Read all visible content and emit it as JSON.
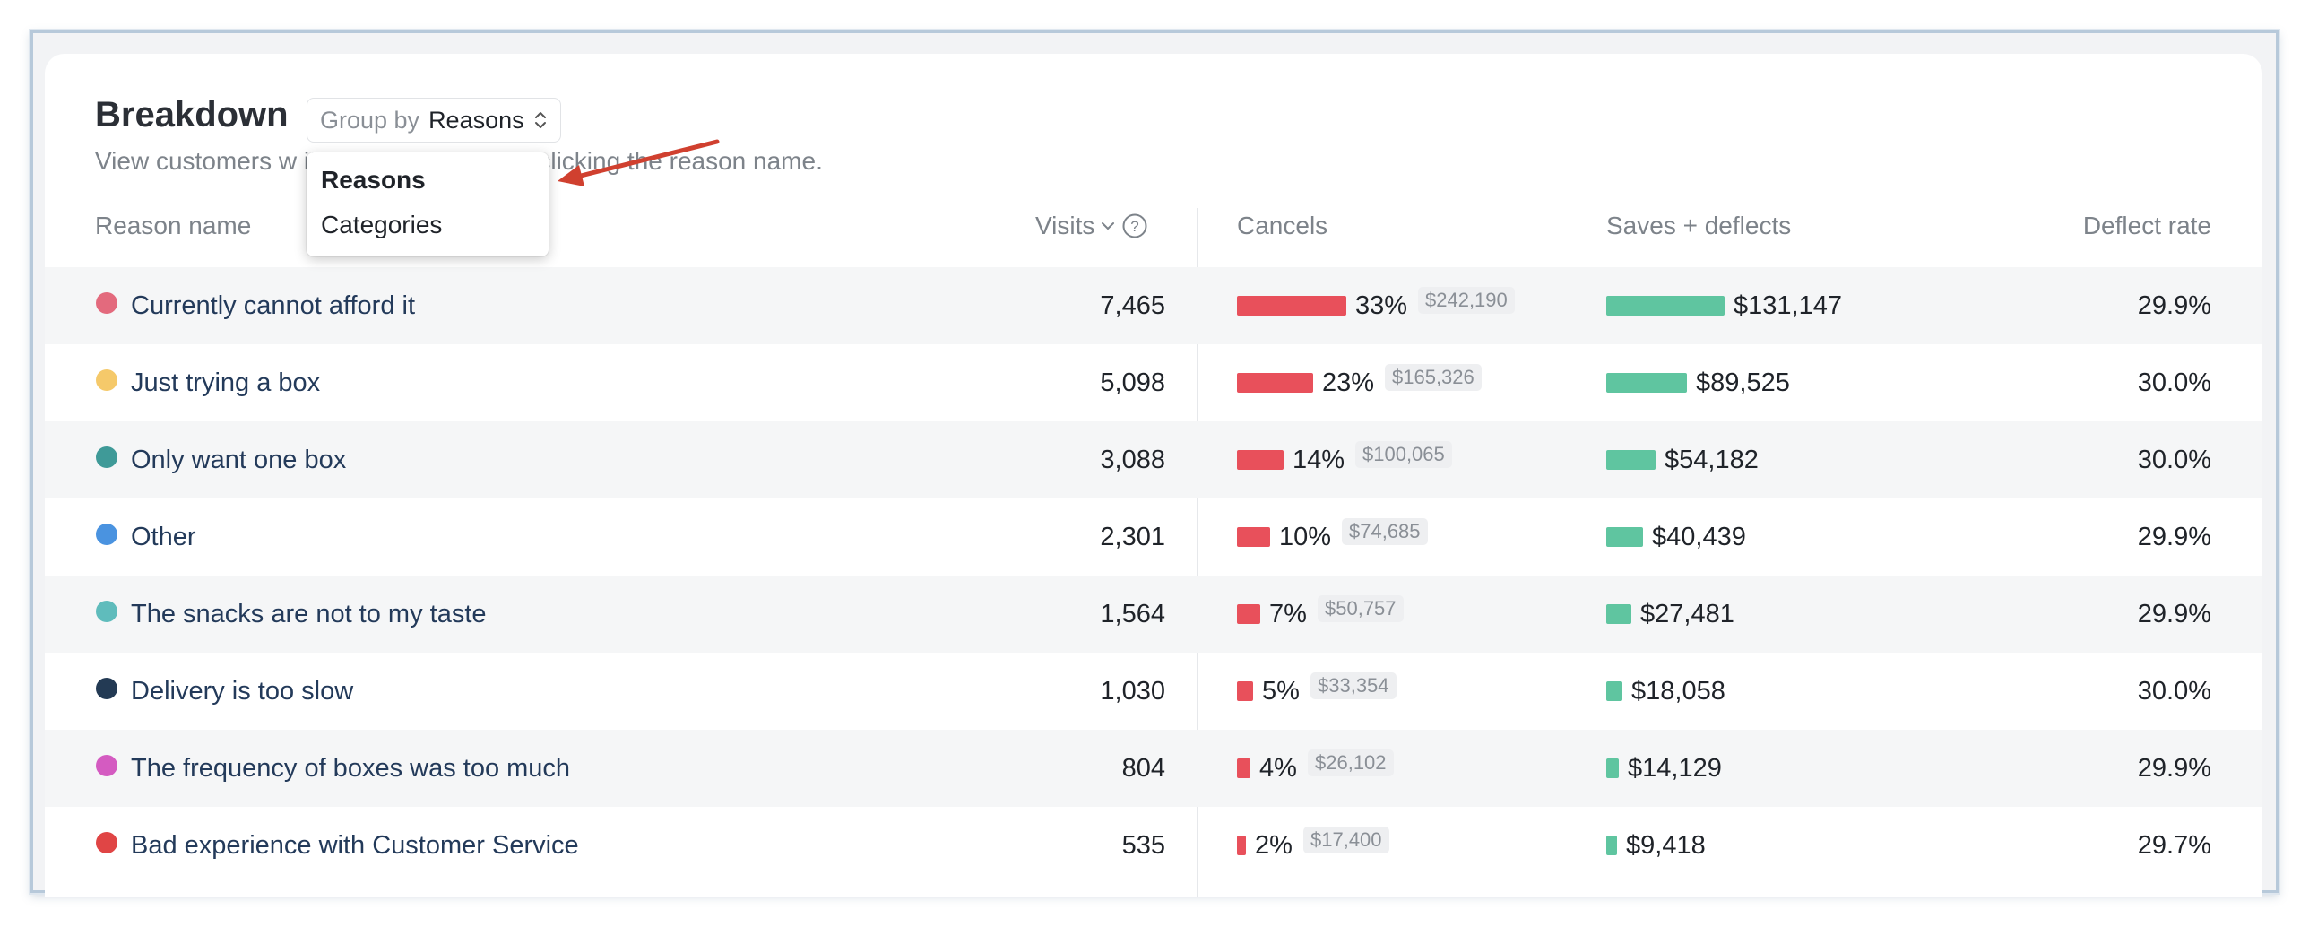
{
  "header": {
    "title": "Breakdown",
    "group_by_label": "Group by",
    "group_by_value": "Reasons",
    "subtitle": "View customers w                                    ific cancel reason by clicking the reason name."
  },
  "dropdown": {
    "options": [
      {
        "label": "Reasons",
        "selected": true
      },
      {
        "label": "Categories",
        "selected": false
      }
    ]
  },
  "columns": {
    "reason": "Reason name",
    "visits": "Visits",
    "cancels": "Cancels",
    "saves": "Saves + deflects",
    "rate": "Deflect rate"
  },
  "colors": {
    "cancel_bar": "#e8505b",
    "save_bar": "#5fc5a0",
    "annotation_arrow": "#d0402f"
  },
  "rows": [
    {
      "name": "Currently cannot afford it",
      "color": "#e36a7d",
      "visits": "7,465",
      "cancel_pct_value": 33,
      "cancel_pct": "33%",
      "cancel_amt": "$242,190",
      "saves": "$131,147",
      "saves_value": 131147,
      "rate": "29.9%"
    },
    {
      "name": "Just trying a box",
      "color": "#f5c96a",
      "visits": "5,098",
      "cancel_pct_value": 23,
      "cancel_pct": "23%",
      "cancel_amt": "$165,326",
      "saves": "$89,525",
      "saves_value": 89525,
      "rate": "30.0%"
    },
    {
      "name": "Only want one box",
      "color": "#3f9a98",
      "visits": "3,088",
      "cancel_pct_value": 14,
      "cancel_pct": "14%",
      "cancel_amt": "$100,065",
      "saves": "$54,182",
      "saves_value": 54182,
      "rate": "30.0%"
    },
    {
      "name": "Other",
      "color": "#4a93e0",
      "visits": "2,301",
      "cancel_pct_value": 10,
      "cancel_pct": "10%",
      "cancel_amt": "$74,685",
      "saves": "$40,439",
      "saves_value": 40439,
      "rate": "29.9%"
    },
    {
      "name": "The snacks are not to my taste",
      "color": "#5fbcbc",
      "visits": "1,564",
      "cancel_pct_value": 7,
      "cancel_pct": "7%",
      "cancel_amt": "$50,757",
      "saves": "$27,481",
      "saves_value": 27481,
      "rate": "29.9%"
    },
    {
      "name": "Delivery is too slow",
      "color": "#233a54",
      "visits": "1,030",
      "cancel_pct_value": 5,
      "cancel_pct": "5%",
      "cancel_amt": "$33,354",
      "saves": "$18,058",
      "saves_value": 18058,
      "rate": "30.0%"
    },
    {
      "name": "The frequency of boxes was too much",
      "color": "#d45bc1",
      "visits": "804",
      "cancel_pct_value": 4,
      "cancel_pct": "4%",
      "cancel_amt": "$26,102",
      "saves": "$14,129",
      "saves_value": 14129,
      "rate": "29.9%"
    },
    {
      "name": "Bad experience with Customer Service",
      "color": "#e04545",
      "visits": "535",
      "cancel_pct_value": 2,
      "cancel_pct": "2%",
      "cancel_amt": "$17,400",
      "saves": "$9,418",
      "saves_value": 9418,
      "rate": "29.7%"
    }
  ]
}
